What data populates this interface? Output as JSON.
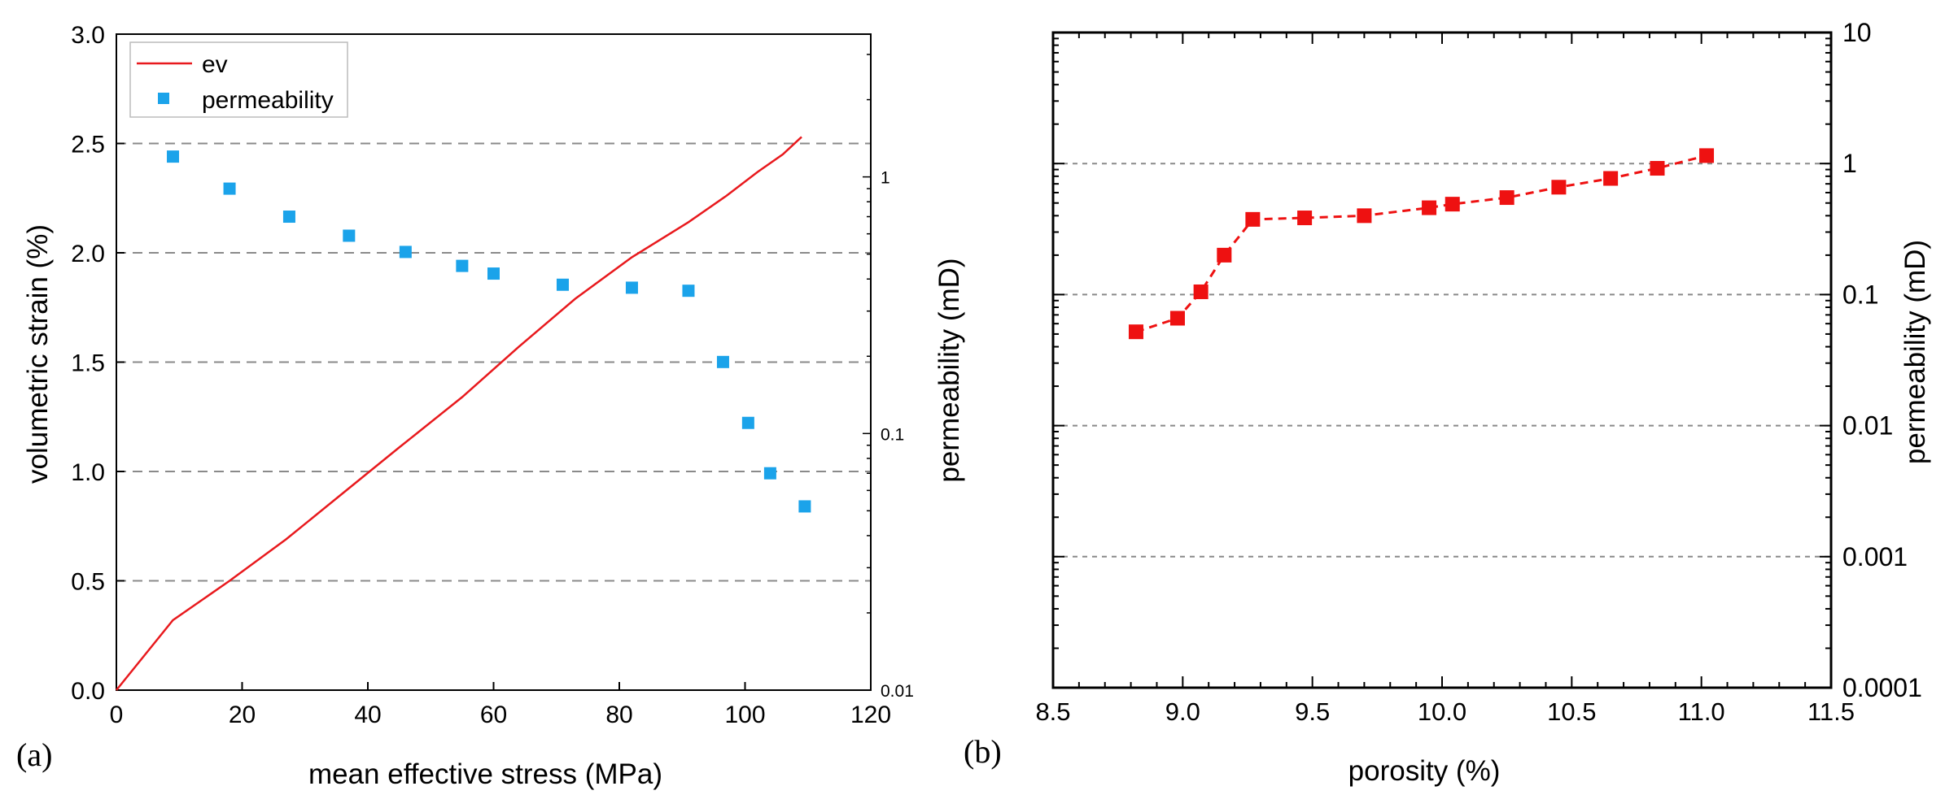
{
  "chart_data": [
    {
      "panel_label": "(a)",
      "type": "scatter",
      "xlabel": "mean effective stress (MPa)",
      "ylabel": "volumetric strain (%)",
      "y2label": "permeability (mD)",
      "xlim": [
        0,
        120
      ],
      "ylim": [
        0,
        3.0
      ],
      "y2lim": [
        0.01,
        3.6
      ],
      "y2scale": "log",
      "xticks": [
        0,
        20,
        40,
        60,
        80,
        100,
        120
      ],
      "yticks": [
        0.0,
        0.5,
        1.0,
        1.5,
        2.0,
        2.5,
        3.0
      ],
      "ytick_labels": [
        "0.0",
        "0.5",
        "1.0",
        "1.5",
        "2.0",
        "2.5",
        "3.0"
      ],
      "y2ticks": [
        0.01,
        0.1,
        1
      ],
      "y2tick_labels": [
        "0.01",
        "0.1",
        "1"
      ],
      "grid": "horizontal dashed at y ticks",
      "legend_position": "top-left",
      "series": [
        {
          "name": "ev",
          "kind": "line",
          "axis": "left",
          "color": "#e8191d",
          "x": [
            0,
            9,
            18,
            27,
            36,
            45,
            55,
            64,
            73,
            82,
            91,
            97,
            102,
            106,
            109
          ],
          "y": [
            0.0,
            0.32,
            0.5,
            0.69,
            0.9,
            1.11,
            1.34,
            1.57,
            1.79,
            1.98,
            2.14,
            2.26,
            2.37,
            2.45,
            2.53
          ]
        },
        {
          "name": "permeability",
          "kind": "scatter",
          "axis": "right",
          "color": "#1ba3ea",
          "x": [
            9,
            18,
            27.5,
            37,
            46,
            55,
            60,
            71,
            82,
            91,
            96.5,
            100.5,
            104,
            109.5
          ],
          "y": [
            1.2,
            0.9,
            0.7,
            0.59,
            0.51,
            0.45,
            0.42,
            0.38,
            0.37,
            0.36,
            0.19,
            0.11,
            0.07,
            0.052
          ]
        }
      ]
    },
    {
      "panel_label": "(b)",
      "type": "line",
      "xlabel": "porosity (%)",
      "ylabel": "",
      "y2label": "permeability (mD)",
      "xlim": [
        8.5,
        11.5
      ],
      "y2lim": [
        0.0001,
        10
      ],
      "y2scale": "log",
      "xticks": [
        8.5,
        9.0,
        9.5,
        10.0,
        10.5,
        11.0,
        11.5
      ],
      "xtick_labels": [
        "8.5",
        "9.0",
        "9.5",
        "10.0",
        "10.5",
        "11.0",
        "11.5"
      ],
      "y2ticks": [
        0.0001,
        0.001,
        0.01,
        0.1,
        1,
        10
      ],
      "y2tick_labels": [
        "0.0001",
        "0.001",
        "0.01",
        "0.1",
        "1",
        "10"
      ],
      "grid": "horizontal dashed at 1, 0.1, 0.01, 0.001",
      "series": [
        {
          "kind": "line+markers",
          "line_style": "dashed",
          "axis": "right",
          "color": "#ee1111",
          "x": [
            8.82,
            8.98,
            9.07,
            9.16,
            9.27,
            9.47,
            9.7,
            9.95,
            10.04,
            10.25,
            10.45,
            10.65,
            10.83,
            11.02
          ],
          "y": [
            0.052,
            0.066,
            0.105,
            0.2,
            0.375,
            0.385,
            0.4,
            0.46,
            0.49,
            0.55,
            0.66,
            0.77,
            0.92,
            1.15
          ]
        }
      ]
    }
  ],
  "colors": {
    "axis": "#000000",
    "grid": "#8a8a8a"
  }
}
